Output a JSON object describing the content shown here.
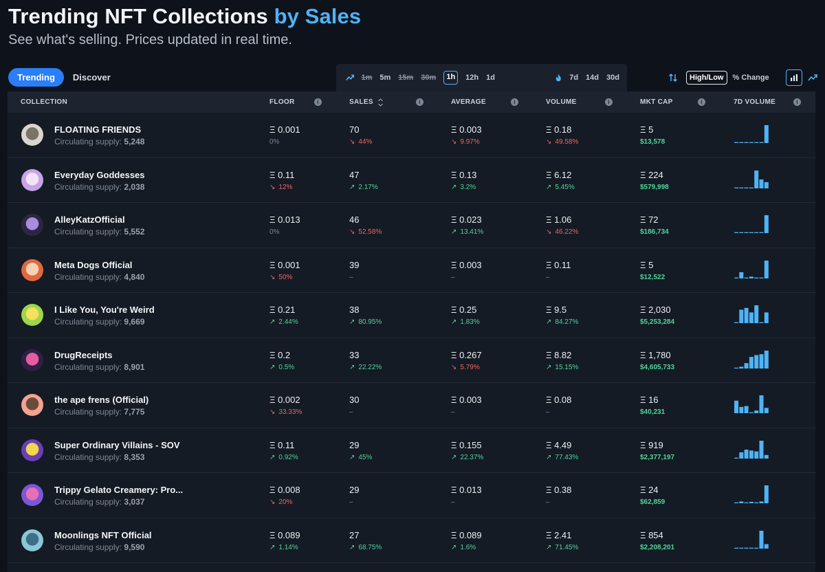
{
  "header": {
    "title_main": "Trending NFT Collections",
    "title_accent": "by Sales",
    "subtitle": "See what's selling. Prices updated in real time."
  },
  "tabs": [
    {
      "label": "Trending",
      "active": true
    },
    {
      "label": "Discover",
      "active": false
    }
  ],
  "time_filters": {
    "short": [
      {
        "label": "1m",
        "state": "disabled"
      },
      {
        "label": "5m",
        "state": "normal"
      },
      {
        "label": "15m",
        "state": "disabled"
      },
      {
        "label": "30m",
        "state": "disabled"
      },
      {
        "label": "1h",
        "state": "active"
      },
      {
        "label": "12h",
        "state": "normal"
      },
      {
        "label": "1d",
        "state": "normal"
      }
    ],
    "long": [
      {
        "label": "7d"
      },
      {
        "label": "14d"
      },
      {
        "label": "30d"
      }
    ]
  },
  "display_options": {
    "high_low": "High/Low",
    "pct_change": "% Change"
  },
  "columns": {
    "collection": "COLLECTION",
    "floor": "FLOOR",
    "sales": "SALES",
    "average": "AVERAGE",
    "volume": "VOLUME",
    "mkt_cap": "MKT CAP",
    "vol7d": "7D VOLUME"
  },
  "supply_label": "Circulating supply:",
  "eth_symbol": "Ξ",
  "colors": {
    "accent": "#4fb3f6",
    "up": "#4fd59b",
    "down": "#f06363",
    "bar": "#4fb3f6"
  },
  "rows": [
    {
      "name": "FLOATING FRIENDS",
      "supply": "5,248",
      "floor": "0.001",
      "floor_chg": "0%",
      "floor_dir": "flat",
      "sales": "70",
      "sales_chg": "44%",
      "sales_dir": "down",
      "avg": "0.003",
      "avg_chg": "9.97%",
      "avg_dir": "down",
      "vol": "0.18",
      "vol_chg": "49.58%",
      "vol_dir": "down",
      "mcap": "5",
      "usd": "$13,578",
      "spark": [
        0.05,
        0.05,
        0.05,
        0.05,
        0.05,
        0.05,
        1.0
      ],
      "avatar": [
        "#d9d6cf",
        "#7a7466"
      ]
    },
    {
      "name": "Everyday Goddesses",
      "supply": "2,038",
      "floor": "0.11",
      "floor_chg": "12%",
      "floor_dir": "down",
      "sales": "47",
      "sales_chg": "2.17%",
      "sales_dir": "up",
      "avg": "0.13",
      "avg_chg": "3.2%",
      "avg_dir": "up",
      "vol": "6.12",
      "vol_chg": "5.45%",
      "vol_dir": "up",
      "mcap": "224",
      "usd": "$579,998",
      "spark": [
        0.05,
        0.05,
        0.05,
        0.05,
        1.0,
        0.5,
        0.35
      ],
      "avatar": [
        "#c8a3e8",
        "#f1e4f7"
      ]
    },
    {
      "name": "AlleyKatzOfficial",
      "supply": "5,552",
      "floor": "0.013",
      "floor_chg": "0%",
      "floor_dir": "flat",
      "sales": "46",
      "sales_chg": "52.58%",
      "sales_dir": "down",
      "avg": "0.023",
      "avg_chg": "13.41%",
      "avg_dir": "up",
      "vol": "1.06",
      "vol_chg": "46.22%",
      "vol_dir": "down",
      "mcap": "72",
      "usd": "$186,734",
      "spark": [
        0.05,
        0.05,
        0.05,
        0.05,
        0.05,
        0.05,
        1.0
      ],
      "avatar": [
        "#2b2740",
        "#a98be0"
      ]
    },
    {
      "name": "Meta Dogs Official",
      "supply": "4,840",
      "floor": "0.001",
      "floor_chg": "50%",
      "floor_dir": "down",
      "sales": "39",
      "sales_chg": "–",
      "sales_dir": "flat",
      "avg": "0.003",
      "avg_chg": "–",
      "avg_dir": "flat",
      "vol": "0.11",
      "vol_chg": "–",
      "vol_dir": "flat",
      "mcap": "5",
      "usd": "$12,522",
      "spark": [
        0.05,
        0.35,
        0.05,
        0.1,
        0.05,
        0.05,
        1.0
      ],
      "avatar": [
        "#e2673d",
        "#f4d2b6"
      ]
    },
    {
      "name": "I Like You, You're Weird",
      "supply": "9,669",
      "floor": "0.21",
      "floor_chg": "2.44%",
      "floor_dir": "up",
      "sales": "38",
      "sales_chg": "80.95%",
      "sales_dir": "up",
      "avg": "0.25",
      "avg_chg": "1.83%",
      "avg_dir": "up",
      "vol": "9.5",
      "vol_chg": "84.27%",
      "vol_dir": "up",
      "mcap": "2,030",
      "usd": "$5,253,284",
      "spark": [
        0.05,
        0.75,
        0.85,
        0.6,
        1.0,
        0.05,
        0.6
      ],
      "avatar": [
        "#9bd64e",
        "#f7e05b"
      ]
    },
    {
      "name": "DrugReceipts",
      "supply": "8,901",
      "floor": "0.2",
      "floor_chg": "0.5%",
      "floor_dir": "up",
      "sales": "33",
      "sales_chg": "22.22%",
      "sales_dir": "up",
      "avg": "0.267",
      "avg_chg": "5.79%",
      "avg_dir": "down",
      "vol": "8.82",
      "vol_chg": "15.15%",
      "vol_dir": "up",
      "mcap": "1,780",
      "usd": "$4,605,733",
      "spark": [
        0.05,
        0.1,
        0.3,
        0.65,
        0.75,
        0.8,
        1.0
      ],
      "avatar": [
        "#2d2142",
        "#e85aa4"
      ]
    },
    {
      "name": "the ape frens (Official)",
      "supply": "7,775",
      "floor": "0.002",
      "floor_chg": "33.33%",
      "floor_dir": "down",
      "sales": "30",
      "sales_chg": "–",
      "sales_dir": "flat",
      "avg": "0.003",
      "avg_chg": "–",
      "avg_dir": "flat",
      "vol": "0.08",
      "vol_chg": "–",
      "vol_dir": "flat",
      "mcap": "16",
      "usd": "$40,231",
      "spark": [
        0.7,
        0.35,
        0.4,
        0.05,
        0.15,
        1.0,
        0.3
      ],
      "avatar": [
        "#f3a38e",
        "#6b4b3c"
      ]
    },
    {
      "name": "Super Ordinary Villains - SOV",
      "supply": "8,353",
      "floor": "0.11",
      "floor_chg": "0.92%",
      "floor_dir": "up",
      "sales": "29",
      "sales_chg": "45%",
      "sales_dir": "up",
      "avg": "0.155",
      "avg_chg": "22.37%",
      "avg_dir": "up",
      "vol": "4.49",
      "vol_chg": "77.43%",
      "vol_dir": "up",
      "mcap": "919",
      "usd": "$2,377,197",
      "spark": [
        0.05,
        0.35,
        0.5,
        0.45,
        0.4,
        1.0,
        0.2
      ],
      "avatar": [
        "#6a3fb4",
        "#f2d64b"
      ]
    },
    {
      "name": "Trippy Gelato Creamery: Pro...",
      "supply": "3,037",
      "floor": "0.008",
      "floor_chg": "20%",
      "floor_dir": "down",
      "sales": "29",
      "sales_chg": "–",
      "sales_dir": "flat",
      "avg": "0.013",
      "avg_chg": "–",
      "avg_dir": "flat",
      "vol": "0.38",
      "vol_chg": "–",
      "vol_dir": "flat",
      "mcap": "24",
      "usd": "$62,859",
      "spark": [
        0.05,
        0.1,
        0.05,
        0.08,
        0.05,
        0.1,
        1.0
      ],
      "avatar": [
        "#7b57d6",
        "#e66fb5"
      ]
    },
    {
      "name": "Moonlings NFT Official",
      "supply": "9,590",
      "floor": "0.089",
      "floor_chg": "1.14%",
      "floor_dir": "up",
      "sales": "27",
      "sales_chg": "68.75%",
      "sales_dir": "up",
      "avg": "0.089",
      "avg_chg": "1.6%",
      "avg_dir": "up",
      "vol": "2.41",
      "vol_chg": "71.45%",
      "vol_dir": "up",
      "mcap": "854",
      "usd": "$2,208,201",
      "spark": [
        0.05,
        0.05,
        0.05,
        0.05,
        0.05,
        1.0,
        0.25
      ],
      "avatar": [
        "#8cc6d8",
        "#3d6f86"
      ]
    }
  ]
}
